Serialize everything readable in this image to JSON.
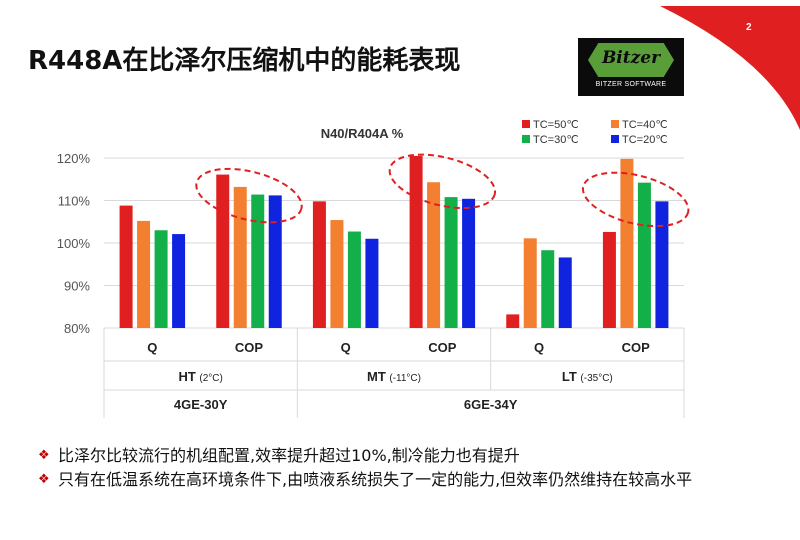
{
  "slide": {
    "title": "R448A在比泽尔压缩机中的能耗表现",
    "page_number": "2",
    "logo_text": "Bitzer",
    "logo_subtext": "BITZER SOFTWARE",
    "accent_color": "#e02020"
  },
  "chart_data": {
    "type": "bar",
    "title": "N40/R404A %",
    "ylim": [
      80,
      120
    ],
    "yticks": [
      80,
      90,
      100,
      110,
      120
    ],
    "ytick_labels": [
      "80%",
      "90%",
      "100%",
      "110%",
      "120%"
    ],
    "series": [
      {
        "name": "TC=50℃",
        "color": "#e02020",
        "values": [
          108.8,
          116.1,
          109.8,
          120.5,
          83.2,
          102.6
        ]
      },
      {
        "name": "TC=40℃",
        "color": "#f28030",
        "values": [
          105.2,
          113.2,
          105.4,
          114.3,
          101.1,
          119.8
        ]
      },
      {
        "name": "TC=30℃",
        "color": "#13b04a",
        "values": [
          103.0,
          111.4,
          102.7,
          110.8,
          98.3,
          114.2
        ]
      },
      {
        "name": "TC=20℃",
        "color": "#1024e0",
        "values": [
          102.1,
          111.2,
          101.0,
          110.4,
          96.6,
          109.8
        ]
      }
    ],
    "categories": [
      "Q",
      "COP",
      "Q",
      "COP",
      "Q",
      "COP"
    ],
    "condition_groups": [
      {
        "name": "HT",
        "detail": "(2°C)"
      },
      {
        "name": "MT",
        "detail": "(-11°C)"
      },
      {
        "name": "LT",
        "detail": "(-35°C)"
      }
    ],
    "compressor_groups": [
      "4GE-30Y",
      "6GE-34Y"
    ],
    "highlight_color": "#e02020"
  },
  "bullets": [
    "比泽尔比较流行的机组配置,效率提升超过10%,制冷能力也有提升",
    "只有在低温系统在高环境条件下,由喷液系统损失了一定的能力,但效率仍然维持在较高水平"
  ]
}
